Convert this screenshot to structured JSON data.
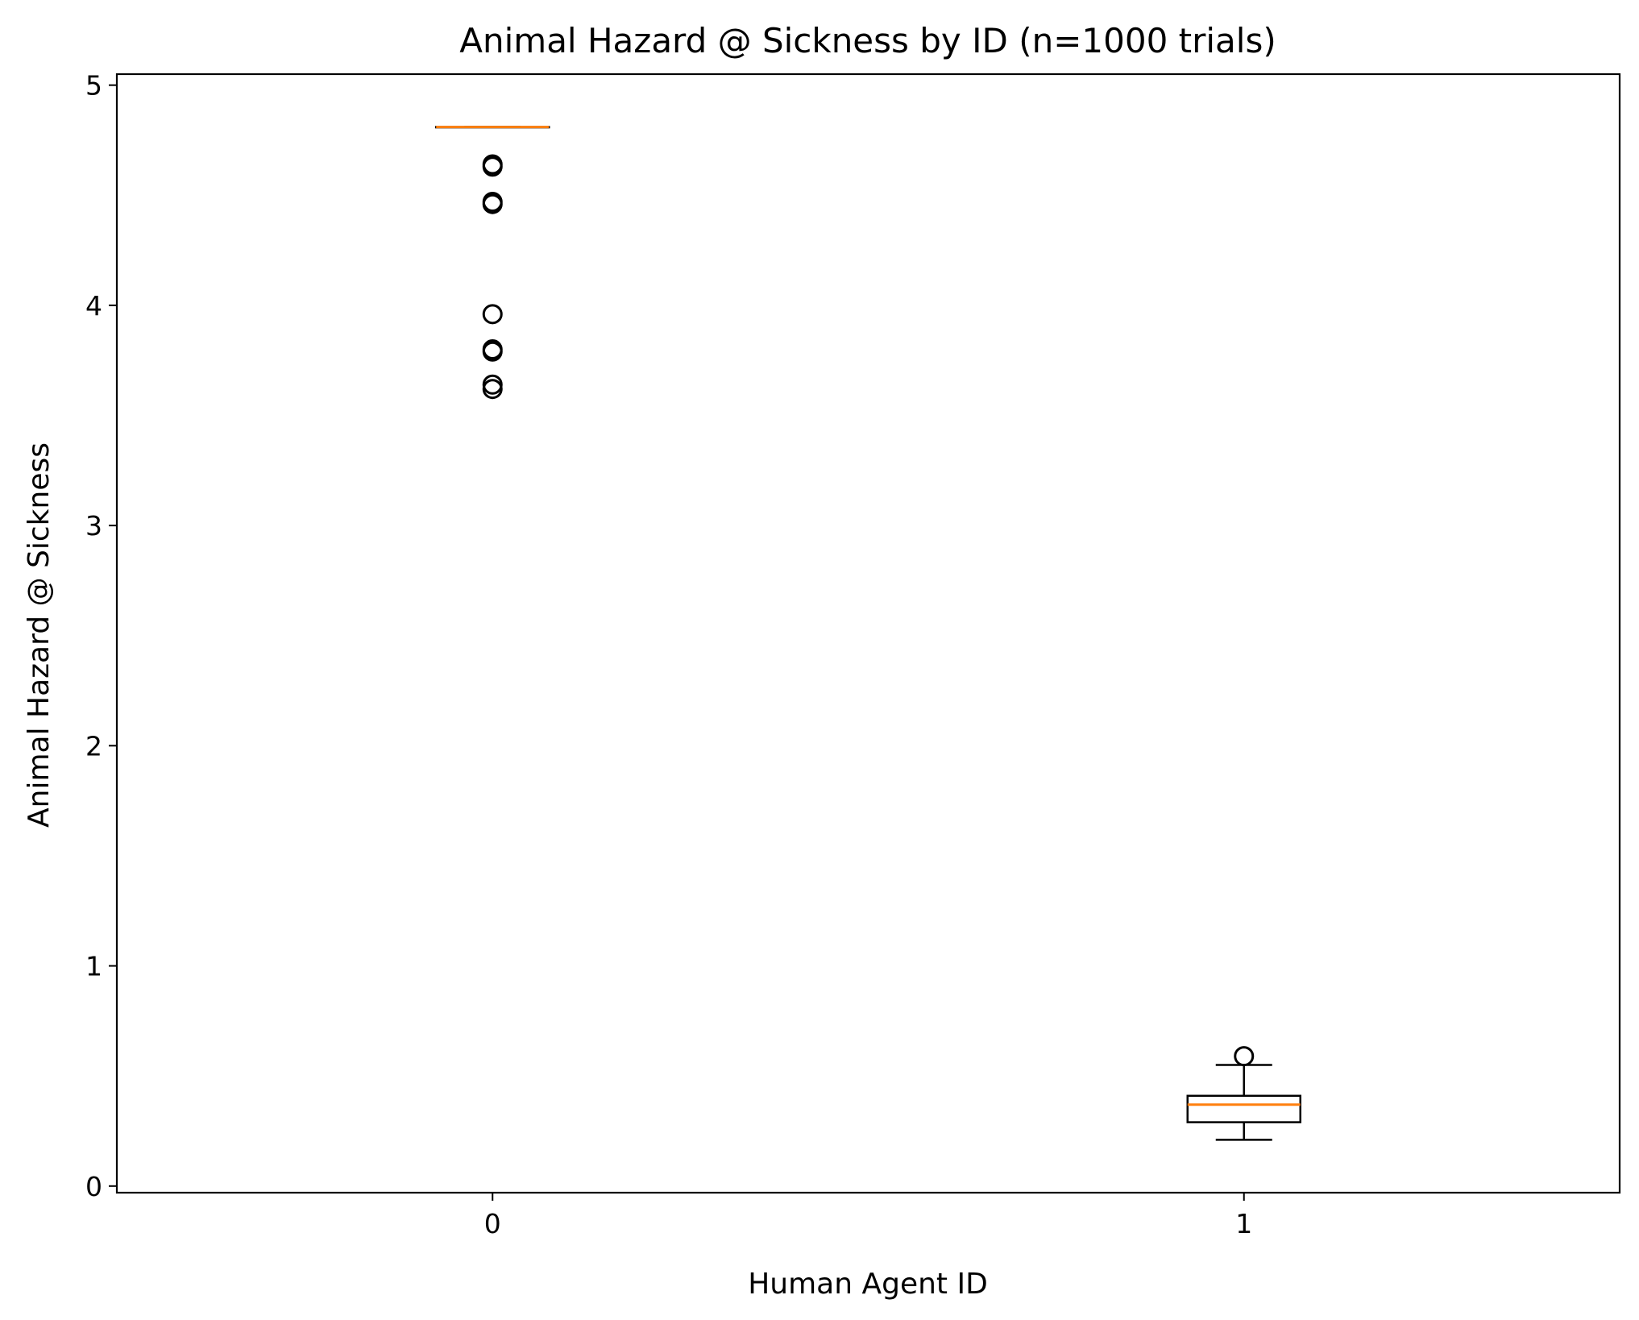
{
  "chart_data": {
    "type": "box",
    "title": "Animal Hazard @ Sickness by ID (n=1000 trials)",
    "xlabel": "Human Agent ID",
    "ylabel": "Animal Hazard @ Sickness",
    "categories": [
      "0",
      "1"
    ],
    "ylim": [
      -0.03,
      5.05
    ],
    "yticks": [
      0,
      1,
      2,
      3,
      4,
      5
    ],
    "ytick_labels": [
      "0",
      "1",
      "2",
      "3",
      "4",
      "5"
    ],
    "grid": false,
    "legend": "none",
    "colors": {
      "box": "#000000",
      "median": "#ff7f0e",
      "outlier": "#000000",
      "background": "#ffffff"
    },
    "boxes": [
      {
        "category": "0",
        "whislo": 4.81,
        "q1": 4.81,
        "med": 4.81,
        "q3": 4.81,
        "whishi": 4.81,
        "fliers": [
          4.64,
          4.63,
          4.47,
          4.46,
          3.96,
          3.8,
          3.79,
          3.64,
          3.62
        ]
      },
      {
        "category": "1",
        "whislo": 0.21,
        "q1": 0.29,
        "med": 0.37,
        "q3": 0.41,
        "whishi": 0.55,
        "fliers": [
          0.59
        ]
      }
    ]
  }
}
